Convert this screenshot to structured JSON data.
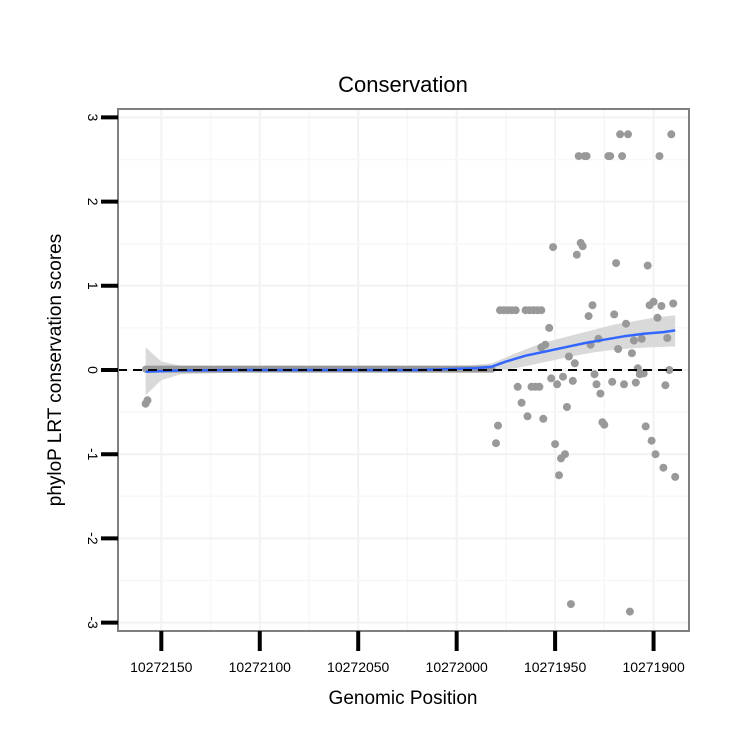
{
  "chart_data": {
    "type": "scatter",
    "title": "Conservation",
    "xlabel": "Genomic Position",
    "ylabel": "phyloP LRT conservation scores",
    "x_reversed": true,
    "xlim": [
      10272172,
      10271882
    ],
    "ylim": [
      -3.1,
      3.1
    ],
    "x_ticks": [
      10272150,
      10272100,
      10272050,
      10272000,
      10271950,
      10271900
    ],
    "x_tick_labels": [
      "10272150",
      "10272100",
      "10272050",
      "10272000",
      "10271950",
      "10271900"
    ],
    "y_ticks": [
      3,
      2,
      1,
      0,
      -1,
      -2,
      -3
    ],
    "y_tick_labels": [
      "3",
      "2",
      "1",
      "0",
      "-1",
      "-2",
      "-3"
    ],
    "grid": true,
    "reference_line": {
      "y": 0,
      "style": "dashed",
      "color": "#000000"
    },
    "colors": {
      "points": "#999999",
      "smooth": "#3366ff",
      "band": "#d9d9d9",
      "panel_border": "#7f7f7f"
    },
    "flat_region": {
      "x_start": 10272158,
      "x_end": 10271982,
      "y": 0.01
    },
    "points": [
      [
        10272158,
        -0.4
      ],
      [
        10272157,
        -0.36
      ],
      [
        10271980,
        -0.87
      ],
      [
        10271979,
        -0.66
      ],
      [
        10271978,
        0.71
      ],
      [
        10271976,
        0.71
      ],
      [
        10271974,
        0.71
      ],
      [
        10271972,
        0.71
      ],
      [
        10271970,
        0.71
      ],
      [
        10271965,
        0.71
      ],
      [
        10271963,
        0.71
      ],
      [
        10271961,
        0.71
      ],
      [
        10271959,
        0.71
      ],
      [
        10271957,
        0.71
      ],
      [
        10271969,
        -0.2
      ],
      [
        10271967,
        -0.39
      ],
      [
        10271964,
        -0.55
      ],
      [
        10271962,
        -0.2
      ],
      [
        10271960,
        -0.2
      ],
      [
        10271958,
        -0.2
      ],
      [
        10271957,
        0.27
      ],
      [
        10271956,
        -0.58
      ],
      [
        10271955,
        0.3
      ],
      [
        10271953,
        0.5
      ],
      [
        10271952,
        -0.1
      ],
      [
        10271951,
        1.46
      ],
      [
        10271950,
        -0.88
      ],
      [
        10271949,
        -0.17
      ],
      [
        10271948,
        -1.25
      ],
      [
        10271947,
        -1.05
      ],
      [
        10271946,
        -0.08
      ],
      [
        10271945,
        -1.0
      ],
      [
        10271944,
        -0.44
      ],
      [
        10271943,
        0.16
      ],
      [
        10271942,
        -2.78
      ],
      [
        10271941,
        -0.13
      ],
      [
        10271940,
        0.08
      ],
      [
        10271939,
        1.37
      ],
      [
        10271938,
        2.54
      ],
      [
        10271937,
        1.51
      ],
      [
        10271936,
        1.47
      ],
      [
        10271935,
        2.54
      ],
      [
        10271934,
        2.54
      ],
      [
        10271933,
        0.64
      ],
      [
        10271932,
        0.3
      ],
      [
        10271931,
        0.77
      ],
      [
        10271930,
        -0.05
      ],
      [
        10271929,
        -0.17
      ],
      [
        10271928,
        0.37
      ],
      [
        10271927,
        -0.28
      ],
      [
        10271926,
        -0.62
      ],
      [
        10271925,
        -0.65
      ],
      [
        10271923,
        2.54
      ],
      [
        10271922,
        2.54
      ],
      [
        10271921,
        -0.14
      ],
      [
        10271920,
        0.66
      ],
      [
        10271919,
        1.27
      ],
      [
        10271918,
        0.25
      ],
      [
        10271917,
        2.8
      ],
      [
        10271916,
        2.54
      ],
      [
        10271915,
        -0.17
      ],
      [
        10271914,
        0.55
      ],
      [
        10271913,
        2.8
      ],
      [
        10271912,
        -2.87
      ],
      [
        10271911,
        0.2
      ],
      [
        10271910,
        0.35
      ],
      [
        10271909,
        -0.15
      ],
      [
        10271908,
        0.02
      ],
      [
        10271907,
        -0.05
      ],
      [
        10271906,
        0.37
      ],
      [
        10271905,
        -0.04
      ],
      [
        10271904,
        -0.67
      ],
      [
        10271903,
        1.24
      ],
      [
        10271902,
        0.77
      ],
      [
        10271901,
        -0.84
      ],
      [
        10271900,
        0.81
      ],
      [
        10271899,
        -1.0
      ],
      [
        10271898,
        0.62
      ],
      [
        10271897,
        2.54
      ],
      [
        10271896,
        0.76
      ],
      [
        10271895,
        -1.16
      ],
      [
        10271894,
        -0.18
      ],
      [
        10271893,
        0.38
      ],
      [
        10271892,
        0.0
      ],
      [
        10271891,
        2.8
      ],
      [
        10271890,
        0.79
      ],
      [
        10271889,
        -1.27
      ]
    ],
    "smooth_line": [
      [
        10272158,
        -0.02
      ],
      [
        10272140,
        -0.005
      ],
      [
        10272110,
        0.0
      ],
      [
        10272080,
        0.0
      ],
      [
        10272050,
        0.0
      ],
      [
        10272020,
        0.0
      ],
      [
        10271990,
        0.02
      ],
      [
        10271982,
        0.04
      ],
      [
        10271975,
        0.1
      ],
      [
        10271965,
        0.17
      ],
      [
        10271955,
        0.22
      ],
      [
        10271945,
        0.27
      ],
      [
        10271935,
        0.32
      ],
      [
        10271925,
        0.36
      ],
      [
        10271915,
        0.4
      ],
      [
        10271905,
        0.43
      ],
      [
        10271895,
        0.45
      ],
      [
        10271889,
        0.47
      ]
    ],
    "confidence_band": {
      "upper": [
        [
          10272158,
          0.27
        ],
        [
          10272150,
          0.1
        ],
        [
          10272140,
          0.05
        ],
        [
          10272110,
          0.03
        ],
        [
          10272080,
          0.03
        ],
        [
          10272050,
          0.03
        ],
        [
          10272020,
          0.04
        ],
        [
          10271995,
          0.05
        ],
        [
          10271982,
          0.08
        ],
        [
          10271970,
          0.2
        ],
        [
          10271960,
          0.29
        ],
        [
          10271950,
          0.36
        ],
        [
          10271940,
          0.42
        ],
        [
          10271930,
          0.48
        ],
        [
          10271920,
          0.54
        ],
        [
          10271910,
          0.58
        ],
        [
          10271900,
          0.62
        ],
        [
          10271889,
          0.65
        ]
      ],
      "lower": [
        [
          10272158,
          -0.3
        ],
        [
          10272150,
          -0.12
        ],
        [
          10272140,
          -0.05
        ],
        [
          10272110,
          -0.03
        ],
        [
          10272080,
          -0.03
        ],
        [
          10272050,
          -0.03
        ],
        [
          10272020,
          -0.03
        ],
        [
          10271995,
          -0.03
        ],
        [
          10271982,
          -0.01
        ],
        [
          10271970,
          0.02
        ],
        [
          10271960,
          0.07
        ],
        [
          10271950,
          0.12
        ],
        [
          10271940,
          0.17
        ],
        [
          10271930,
          0.21
        ],
        [
          10271920,
          0.24
        ],
        [
          10271910,
          0.26
        ],
        [
          10271900,
          0.27
        ],
        [
          10271889,
          0.28
        ]
      ]
    }
  }
}
